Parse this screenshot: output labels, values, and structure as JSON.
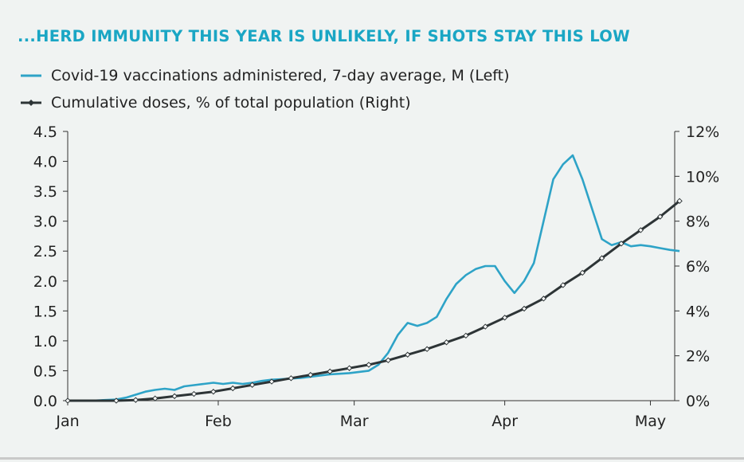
{
  "colors": {
    "background": "#f0f3f2",
    "title": "#1aa6c4",
    "vaccinations": "#2ea3c7",
    "cumulative": "#2d3436",
    "axis": "#333333"
  },
  "chart_data": {
    "type": "line",
    "title": "...HERD IMMUNITY THIS YEAR IS UNLIKELY, IF SHOTS STAY THIS LOW",
    "legend_position": "top-left",
    "grid": false,
    "x_ticks": [
      "Jan",
      "Feb",
      "Mar",
      "Apr",
      "May"
    ],
    "x_tick_days": [
      0,
      31,
      59,
      90,
      120
    ],
    "xlim": [
      0,
      125
    ],
    "y_left": {
      "ticks": [
        "0.0",
        "0.5",
        "1.0",
        "1.5",
        "2.0",
        "2.5",
        "3.0",
        "3.5",
        "4.0",
        "4.5"
      ],
      "ylim": [
        0,
        4.5
      ]
    },
    "y_right": {
      "ticks": [
        "0%",
        "2%",
        "4%",
        "6%",
        "8%",
        "10%",
        "12%"
      ],
      "ylim": [
        0,
        12
      ]
    },
    "series": [
      {
        "name": "Covid-19 vaccinations administered, 7-day average, M (Left)",
        "axis": "left",
        "x": [
          0,
          5,
          10,
          12,
          14,
          16,
          18,
          20,
          22,
          24,
          26,
          28,
          30,
          32,
          34,
          36,
          38,
          40,
          42,
          44,
          46,
          48,
          50,
          52,
          54,
          56,
          58,
          60,
          62,
          64,
          66,
          68,
          70,
          72,
          74,
          76,
          78,
          80,
          82,
          84,
          86,
          88,
          90,
          92,
          94,
          96,
          98,
          100,
          102,
          104,
          106,
          108,
          110,
          112,
          114,
          116,
          118,
          120,
          122,
          124,
          126
        ],
        "values": [
          0,
          0,
          0.02,
          0.05,
          0.1,
          0.15,
          0.18,
          0.2,
          0.18,
          0.24,
          0.26,
          0.28,
          0.3,
          0.28,
          0.3,
          0.28,
          0.3,
          0.33,
          0.35,
          0.36,
          0.37,
          0.38,
          0.4,
          0.42,
          0.44,
          0.45,
          0.46,
          0.48,
          0.5,
          0.6,
          0.8,
          1.1,
          1.3,
          1.25,
          1.3,
          1.4,
          1.7,
          1.95,
          2.1,
          2.2,
          2.25,
          2.25,
          2.0,
          1.8,
          2.0,
          2.3,
          3.0,
          3.7,
          3.95,
          4.1,
          3.7,
          3.2,
          2.7,
          2.6,
          2.65,
          2.58,
          2.6,
          2.58,
          2.55,
          2.52,
          2.5
        ]
      },
      {
        "name": "Cumulative doses, % of total population (Right)",
        "axis": "right",
        "x": [
          0,
          10,
          14,
          18,
          22,
          26,
          30,
          34,
          38,
          42,
          46,
          50,
          54,
          58,
          62,
          66,
          70,
          74,
          78,
          82,
          86,
          90,
          94,
          98,
          102,
          106,
          110,
          114,
          118,
          122,
          126
        ],
        "values": [
          0,
          0,
          0.03,
          0.1,
          0.2,
          0.3,
          0.4,
          0.55,
          0.7,
          0.85,
          1.0,
          1.15,
          1.3,
          1.45,
          1.6,
          1.8,
          2.05,
          2.3,
          2.6,
          2.9,
          3.3,
          3.7,
          4.1,
          4.55,
          5.15,
          5.7,
          6.35,
          7.0,
          7.6,
          8.2,
          8.9
        ]
      }
    ]
  }
}
